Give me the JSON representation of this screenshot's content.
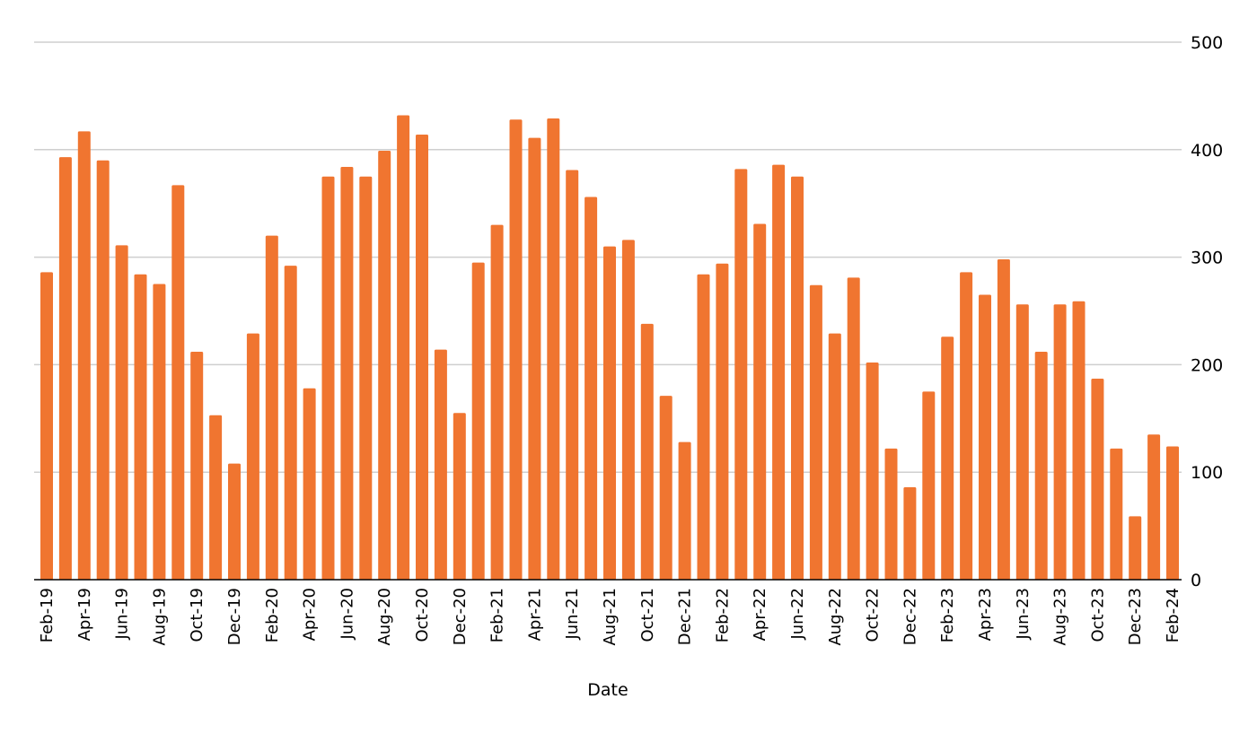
{
  "chart_data": {
    "type": "bar",
    "xlabel": "Date",
    "ylabel": "",
    "ylim": [
      0,
      500
    ],
    "yticks": [
      0,
      100,
      200,
      300,
      400,
      500
    ],
    "y_axis_side": "right",
    "grid": true,
    "bar_color": "#f07530",
    "categories": [
      "Feb-19",
      "Mar-19",
      "Apr-19",
      "May-19",
      "Jun-19",
      "Jul-19",
      "Aug-19",
      "Sep-19",
      "Oct-19",
      "Nov-19",
      "Dec-19",
      "Jan-20",
      "Feb-20",
      "Mar-20",
      "Apr-20",
      "May-20",
      "Jun-20",
      "Jul-20",
      "Aug-20",
      "Sep-20",
      "Oct-20",
      "Nov-20",
      "Dec-20",
      "Jan-21",
      "Feb-21",
      "Mar-21",
      "Apr-21",
      "May-21",
      "Jun-21",
      "Jul-21",
      "Aug-21",
      "Sep-21",
      "Oct-21",
      "Nov-21",
      "Dec-21",
      "Jan-22",
      "Feb-22",
      "Mar-22",
      "Apr-22",
      "May-22",
      "Jun-22",
      "Jul-22",
      "Aug-22",
      "Sep-22",
      "Oct-22",
      "Nov-22",
      "Dec-22",
      "Jan-23",
      "Feb-23",
      "Mar-23",
      "Apr-23",
      "May-23",
      "Jun-23",
      "Jul-23",
      "Aug-23",
      "Sep-23",
      "Oct-23",
      "Nov-23",
      "Dec-23",
      "Jan-24",
      "Feb-24"
    ],
    "tick_labels": [
      "Feb-19",
      "Apr-19",
      "Jun-19",
      "Aug-19",
      "Oct-19",
      "Dec-19",
      "Feb-20",
      "Apr-20",
      "Jun-20",
      "Aug-20",
      "Oct-20",
      "Dec-20",
      "Feb-21",
      "Apr-21",
      "Jun-21",
      "Aug-21",
      "Oct-21",
      "Dec-21",
      "Feb-22",
      "Apr-22",
      "Jun-22",
      "Aug-22",
      "Oct-22",
      "Dec-22",
      "Feb-23",
      "Apr-23",
      "Jun-23",
      "Aug-23",
      "Oct-23",
      "Dec-23",
      "Feb-24"
    ],
    "values": [
      286,
      393,
      417,
      390,
      311,
      284,
      275,
      367,
      212,
      153,
      108,
      229,
      320,
      292,
      178,
      375,
      384,
      375,
      399,
      432,
      414,
      214,
      155,
      295,
      330,
      428,
      411,
      429,
      381,
      356,
      310,
      316,
      238,
      171,
      128,
      284,
      294,
      382,
      331,
      386,
      375,
      274,
      229,
      281,
      202,
      122,
      86,
      175,
      226,
      286,
      265,
      298,
      256,
      212,
      256,
      259,
      187,
      122,
      59,
      135,
      124
    ]
  }
}
